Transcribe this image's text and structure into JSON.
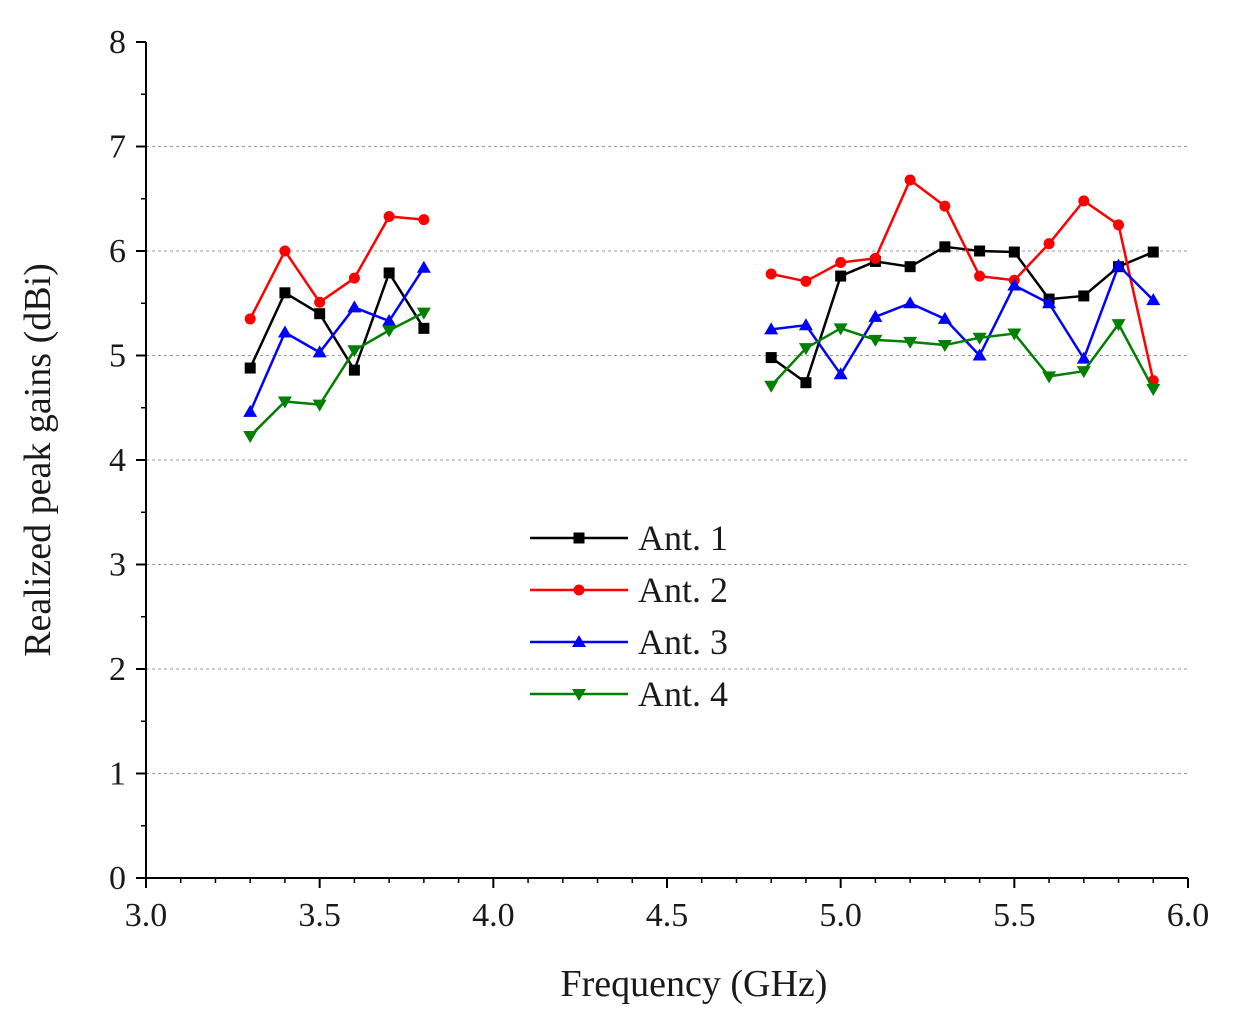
{
  "chart_data": {
    "type": "line",
    "title": "",
    "xlabel": "Frequency (GHz)",
    "ylabel": "Realized peak gains (dBi)",
    "xlim": [
      3.0,
      6.0
    ],
    "ylim": [
      0,
      8
    ],
    "xticks": [
      3.0,
      3.5,
      4.0,
      4.5,
      5.0,
      5.5,
      6.0
    ],
    "xtick_labels": [
      "3.0",
      "3.5",
      "4.0",
      "4.5",
      "5.0",
      "5.5",
      "6.0"
    ],
    "yticks": [
      0,
      1,
      2,
      3,
      4,
      5,
      6,
      7,
      8
    ],
    "ytick_labels": [
      "0",
      "1",
      "2",
      "3",
      "4",
      "5",
      "6",
      "7",
      "8"
    ],
    "grid": "horizontal dashed",
    "legend_position": "center",
    "series": [
      {
        "name": "Ant. 1",
        "color": "#000000",
        "marker": "square",
        "segments": [
          {
            "x": [
              3.3,
              3.4,
              3.5,
              3.6,
              3.7,
              3.8
            ],
            "y": [
              4.88,
              5.6,
              5.4,
              4.86,
              5.79,
              5.26
            ]
          },
          {
            "x": [
              4.8,
              4.9,
              5.0,
              5.1,
              5.2,
              5.3,
              5.4,
              5.5,
              5.6,
              5.7,
              5.8,
              5.9
            ],
            "y": [
              4.98,
              4.74,
              5.76,
              5.9,
              5.85,
              6.04,
              6.0,
              5.99,
              5.54,
              5.57,
              5.85,
              5.99
            ]
          }
        ]
      },
      {
        "name": "Ant. 2",
        "color": "#ff0000",
        "marker": "circle",
        "segments": [
          {
            "x": [
              3.3,
              3.4,
              3.5,
              3.6,
              3.7,
              3.8
            ],
            "y": [
              5.35,
              6.0,
              5.51,
              5.74,
              6.33,
              6.3
            ]
          },
          {
            "x": [
              4.8,
              4.9,
              5.0,
              5.1,
              5.2,
              5.3,
              5.4,
              5.5,
              5.6,
              5.7,
              5.8,
              5.9
            ],
            "y": [
              5.78,
              5.71,
              5.89,
              5.93,
              6.68,
              6.43,
              5.76,
              5.72,
              6.07,
              6.48,
              6.25,
              4.76
            ]
          }
        ]
      },
      {
        "name": "Ant. 3",
        "color": "#0000ff",
        "marker": "triangle-up",
        "segments": [
          {
            "x": [
              3.3,
              3.4,
              3.5,
              3.6,
              3.7,
              3.8
            ],
            "y": [
              4.46,
              5.22,
              5.03,
              5.46,
              5.33,
              5.84
            ]
          },
          {
            "x": [
              4.8,
              4.9,
              5.0,
              5.1,
              5.2,
              5.3,
              5.4,
              5.5,
              5.6,
              5.7,
              5.8,
              5.9
            ],
            "y": [
              5.25,
              5.29,
              4.82,
              5.37,
              5.5,
              5.35,
              5.0,
              5.67,
              5.5,
              4.97,
              5.86,
              5.53
            ]
          }
        ]
      },
      {
        "name": "Ant. 4",
        "color": "#008000",
        "marker": "triangle-down",
        "segments": [
          {
            "x": [
              3.3,
              3.4,
              3.5,
              3.6,
              3.7,
              3.8
            ],
            "y": [
              4.23,
              4.56,
              4.53,
              5.05,
              5.24,
              5.41
            ]
          },
          {
            "x": [
              4.8,
              4.9,
              5.0,
              5.1,
              5.2,
              5.3,
              5.4,
              5.5,
              5.6,
              5.7,
              5.8,
              5.9
            ],
            "y": [
              4.71,
              5.07,
              5.26,
              5.15,
              5.13,
              5.1,
              5.17,
              5.21,
              4.8,
              4.85,
              5.3,
              4.68
            ]
          }
        ]
      }
    ]
  }
}
